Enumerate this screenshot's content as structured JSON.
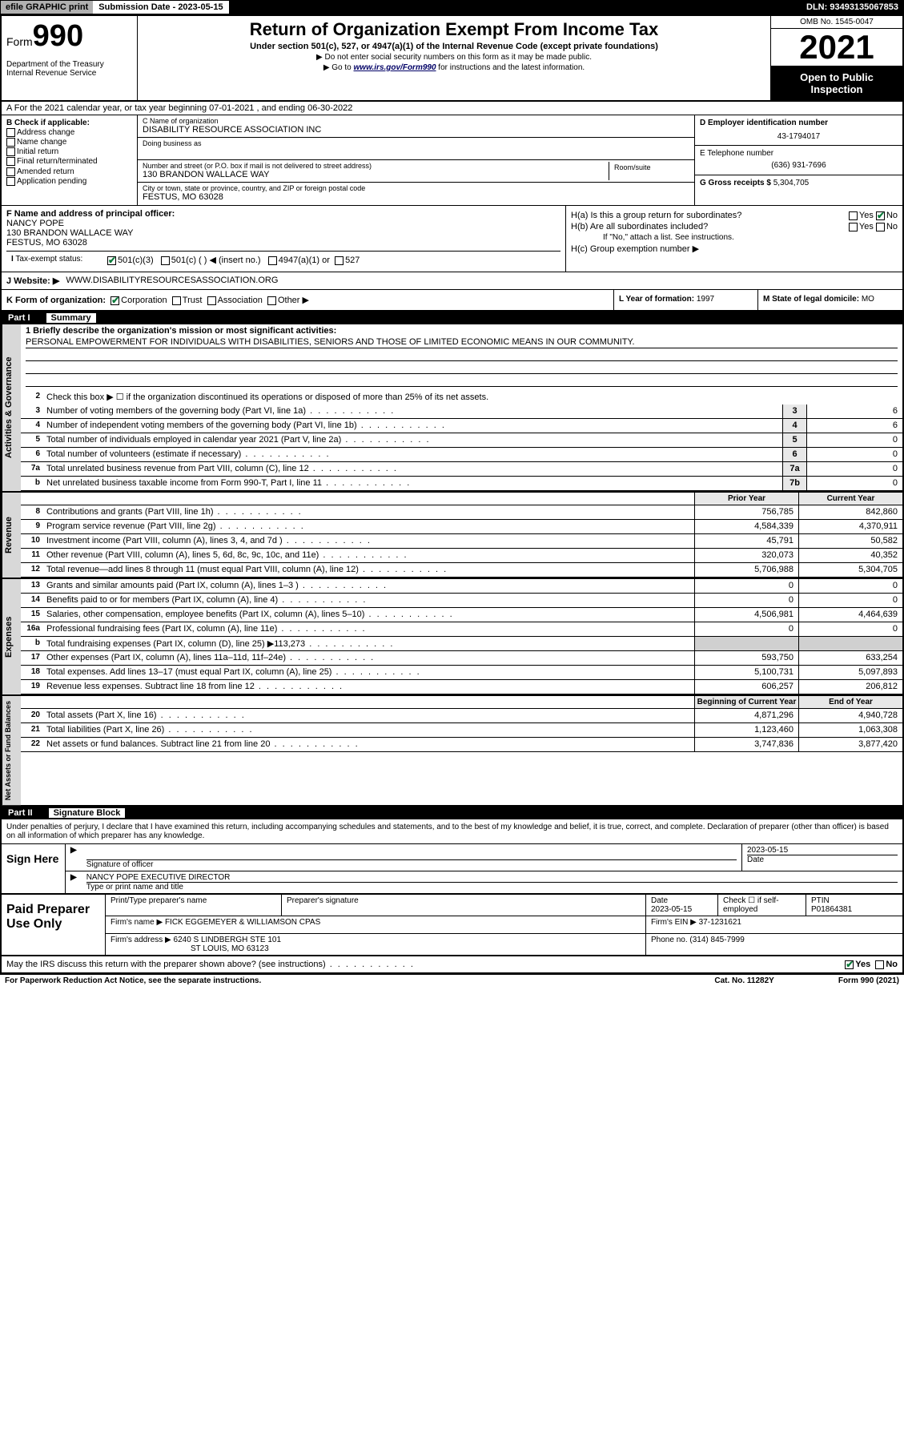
{
  "topbar": {
    "efile": "efile GRAPHIC print",
    "submission_label": "Submission Date - 2023-05-15",
    "dln": "DLN: 93493135067853"
  },
  "header": {
    "form_prefix": "Form",
    "form_num": "990",
    "title": "Return of Organization Exempt From Income Tax",
    "subtitle": "Under section 501(c), 527, or 4947(a)(1) of the Internal Revenue Code (except private foundations)",
    "note1": "▶ Do not enter social security numbers on this form as it may be made public.",
    "note2_pre": "▶ Go to ",
    "note2_link": "www.irs.gov/Form990",
    "note2_post": " for instructions and the latest information.",
    "dept": "Department of the Treasury\nInternal Revenue Service",
    "omb": "OMB No. 1545-0047",
    "year": "2021",
    "open": "Open to Public Inspection"
  },
  "row_a": "A For the 2021 calendar year, or tax year beginning 07-01-2021  , and ending 06-30-2022",
  "b": {
    "label": "B Check if applicable:",
    "items": [
      "Address change",
      "Name change",
      "Initial return",
      "Final return/terminated",
      "Amended return",
      "Application pending"
    ]
  },
  "c": {
    "name_label": "C Name of organization",
    "name": "DISABILITY RESOURCE ASSOCIATION INC",
    "dba_label": "Doing business as",
    "dba": "",
    "street_label": "Number and street (or P.O. box if mail is not delivered to street address)",
    "street": "130 BRANDON WALLACE WAY",
    "room_label": "Room/suite",
    "room": "",
    "city_label": "City or town, state or province, country, and ZIP or foreign postal code",
    "city": "FESTUS, MO  63028"
  },
  "d": {
    "label": "D Employer identification number",
    "val": "43-1794017"
  },
  "e": {
    "label": "E Telephone number",
    "val": "(636) 931-7696"
  },
  "g": {
    "label": "G Gross receipts $",
    "val": "5,304,705"
  },
  "f": {
    "label": "F Name and address of principal officer:",
    "name": "NANCY POPE",
    "addr1": "130 BRANDON WALLACE WAY",
    "addr2": "FESTUS, MO  63028"
  },
  "h": {
    "a_label": "H(a)  Is this a group return for subordinates?",
    "a_yes": "Yes",
    "a_no": "No",
    "b_label": "H(b)  Are all subordinates included?",
    "b_note": "If \"No,\" attach a list. See instructions.",
    "c_label": "H(c)  Group exemption number ▶"
  },
  "i": {
    "label": "I  Tax-exempt status:",
    "opt1": "501(c)(3)",
    "opt2": "501(c) (  ) ◀ (insert no.)",
    "opt3": "4947(a)(1) or",
    "opt4": "527"
  },
  "j": {
    "label": "J  Website: ▶",
    "val": "WWW.DISABILITYRESOURCESASSOCIATION.ORG"
  },
  "k": {
    "label": "K Form of organization:",
    "opts": [
      "Corporation",
      "Trust",
      "Association",
      "Other ▶"
    ]
  },
  "l": {
    "label": "L Year of formation:",
    "val": "1997"
  },
  "m": {
    "label": "M State of legal domicile:",
    "val": "MO"
  },
  "part1": {
    "num": "Part I",
    "title": "Summary",
    "q1_label": "1  Briefly describe the organization's mission or most significant activities:",
    "q1_val": "PERSONAL EMPOWERMENT FOR INDIVIDUALS WITH DISABILITIES, SENIORS AND THOSE OF LIMITED ECONOMIC MEANS IN OUR COMMUNITY.",
    "q2": "Check this box ▶ ☐  if the organization discontinued its operations or disposed of more than 25% of its net assets.",
    "tab_ag": "Activities & Governance",
    "tab_rev": "Revenue",
    "tab_exp": "Expenses",
    "tab_na": "Net Assets or Fund Balances",
    "lines_ag": [
      {
        "n": "3",
        "d": "Number of voting members of the governing body (Part VI, line 1a)",
        "box": "3",
        "v": "6"
      },
      {
        "n": "4",
        "d": "Number of independent voting members of the governing body (Part VI, line 1b)",
        "box": "4",
        "v": "6"
      },
      {
        "n": "5",
        "d": "Total number of individuals employed in calendar year 2021 (Part V, line 2a)",
        "box": "5",
        "v": "0"
      },
      {
        "n": "6",
        "d": "Total number of volunteers (estimate if necessary)",
        "box": "6",
        "v": "0"
      },
      {
        "n": "7a",
        "d": "Total unrelated business revenue from Part VIII, column (C), line 12",
        "box": "7a",
        "v": "0"
      },
      {
        "n": "b",
        "d": "Net unrelated business taxable income from Form 990-T, Part I, line 11",
        "box": "7b",
        "v": "0"
      }
    ],
    "col_prior": "Prior Year",
    "col_current": "Current Year",
    "lines_rev": [
      {
        "n": "8",
        "d": "Contributions and grants (Part VIII, line 1h)",
        "p": "756,785",
        "c": "842,860"
      },
      {
        "n": "9",
        "d": "Program service revenue (Part VIII, line 2g)",
        "p": "4,584,339",
        "c": "4,370,911"
      },
      {
        "n": "10",
        "d": "Investment income (Part VIII, column (A), lines 3, 4, and 7d )",
        "p": "45,791",
        "c": "50,582"
      },
      {
        "n": "11",
        "d": "Other revenue (Part VIII, column (A), lines 5, 6d, 8c, 9c, 10c, and 11e)",
        "p": "320,073",
        "c": "40,352"
      },
      {
        "n": "12",
        "d": "Total revenue—add lines 8 through 11 (must equal Part VIII, column (A), line 12)",
        "p": "5,706,988",
        "c": "5,304,705"
      }
    ],
    "lines_exp": [
      {
        "n": "13",
        "d": "Grants and similar amounts paid (Part IX, column (A), lines 1–3 )",
        "p": "0",
        "c": "0"
      },
      {
        "n": "14",
        "d": "Benefits paid to or for members (Part IX, column (A), line 4)",
        "p": "0",
        "c": "0"
      },
      {
        "n": "15",
        "d": "Salaries, other compensation, employee benefits (Part IX, column (A), lines 5–10)",
        "p": "4,506,981",
        "c": "4,464,639"
      },
      {
        "n": "16a",
        "d": "Professional fundraising fees (Part IX, column (A), line 11e)",
        "p": "0",
        "c": "0"
      },
      {
        "n": "b",
        "d": "Total fundraising expenses (Part IX, column (D), line 25) ▶113,273",
        "p": "shade",
        "c": "shade"
      },
      {
        "n": "17",
        "d": "Other expenses (Part IX, column (A), lines 11a–11d, 11f–24e)",
        "p": "593,750",
        "c": "633,254"
      },
      {
        "n": "18",
        "d": "Total expenses. Add lines 13–17 (must equal Part IX, column (A), line 25)",
        "p": "5,100,731",
        "c": "5,097,893"
      },
      {
        "n": "19",
        "d": "Revenue less expenses. Subtract line 18 from line 12",
        "p": "606,257",
        "c": "206,812"
      }
    ],
    "col_begin": "Beginning of Current Year",
    "col_end": "End of Year",
    "lines_na": [
      {
        "n": "20",
        "d": "Total assets (Part X, line 16)",
        "p": "4,871,296",
        "c": "4,940,728"
      },
      {
        "n": "21",
        "d": "Total liabilities (Part X, line 26)",
        "p": "1,123,460",
        "c": "1,063,308"
      },
      {
        "n": "22",
        "d": "Net assets or fund balances. Subtract line 21 from line 20",
        "p": "3,747,836",
        "c": "3,877,420"
      }
    ]
  },
  "part2": {
    "num": "Part II",
    "title": "Signature Block",
    "intro": "Under penalties of perjury, I declare that I have examined this return, including accompanying schedules and statements, and to the best of my knowledge and belief, it is true, correct, and complete. Declaration of preparer (other than officer) is based on all information of which preparer has any knowledge.",
    "sign_here": "Sign Here",
    "sig_officer": "Signature of officer",
    "sig_date": "2023-05-15",
    "date_lbl": "Date",
    "sig_name": "NANCY POPE  EXECUTIVE DIRECTOR",
    "sig_name_lbl": "Type or print name and title",
    "paid": "Paid Preparer Use Only",
    "p_name_lbl": "Print/Type preparer's name",
    "p_sig_lbl": "Preparer's signature",
    "p_date_lbl": "Date",
    "p_date": "2023-05-15",
    "p_check": "Check ☐ if self-employed",
    "p_ptin_lbl": "PTIN",
    "p_ptin": "P01864381",
    "firm_name_lbl": "Firm's name    ▶",
    "firm_name": "FICK EGGEMEYER & WILLIAMSON CPAS",
    "firm_ein_lbl": "Firm's EIN ▶",
    "firm_ein": "37-1231621",
    "firm_addr_lbl": "Firm's address ▶",
    "firm_addr1": "6240 S LINDBERGH STE 101",
    "firm_addr2": "ST LOUIS, MO  63123",
    "firm_phone_lbl": "Phone no.",
    "firm_phone": "(314) 845-7999",
    "discuss": "May the IRS discuss this return with the preparer shown above? (see instructions)",
    "yes": "Yes",
    "no": "No"
  },
  "footer": {
    "left": "For Paperwork Reduction Act Notice, see the separate instructions.",
    "mid": "Cat. No. 11282Y",
    "right": "Form 990 (2021)"
  }
}
